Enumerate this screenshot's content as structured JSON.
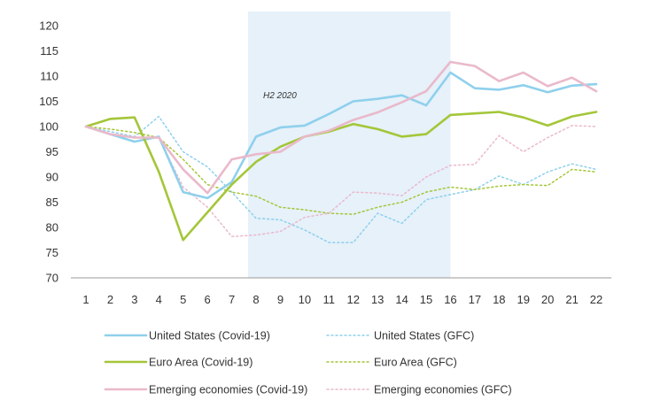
{
  "chart_data": {
    "type": "line",
    "title": "",
    "xlabel": "",
    "ylabel": "",
    "x": [
      1,
      2,
      3,
      4,
      5,
      6,
      7,
      8,
      9,
      10,
      11,
      12,
      13,
      14,
      15,
      16,
      17,
      18,
      19,
      20,
      21,
      22
    ],
    "ylim": [
      70,
      120
    ],
    "yticks": [
      70,
      75,
      80,
      85,
      90,
      95,
      100,
      105,
      110,
      115,
      120
    ],
    "grid": false,
    "legend_position": "bottom",
    "shaded_region": {
      "x_start": 8,
      "x_end": 16,
      "label": "H2 2020",
      "color": "#e6f1fa"
    },
    "series": [
      {
        "name": "United States (Covid-19)",
        "color": "#8fd0ec",
        "style": "solid",
        "values": [
          100,
          98.5,
          97,
          98,
          87,
          85.8,
          89,
          98,
          99.8,
          100.2,
          102.5,
          105,
          105.5,
          106.2,
          104.2,
          110.7,
          107.6,
          107.3,
          108.2,
          106.8,
          108.1,
          108.4
        ]
      },
      {
        "name": "United States (GFC)",
        "color": "#8fd0ec",
        "style": "dotted",
        "values": [
          100,
          99,
          98,
          102,
          95,
          92,
          87,
          81.8,
          81.5,
          79.5,
          77,
          77,
          82.8,
          80.8,
          85.5,
          86.5,
          87.5,
          90.2,
          88.5,
          91,
          92.6,
          91.5
        ]
      },
      {
        "name": "Euro Area (Covid-19)",
        "color": "#a4c639",
        "style": "solid",
        "values": [
          100,
          101.5,
          101.8,
          91,
          77.5,
          83,
          88.5,
          93,
          96,
          98,
          99,
          100.5,
          99.5,
          98,
          98.5,
          102.3,
          102.6,
          102.9,
          101.8,
          100.2,
          102,
          102.9
        ]
      },
      {
        "name": "Euro Area (GFC)",
        "color": "#a4c639",
        "style": "dotted",
        "values": [
          100,
          99.5,
          98.8,
          97.8,
          93.5,
          88.5,
          87,
          86.2,
          84,
          83.5,
          82.8,
          82.6,
          84,
          85,
          87,
          88,
          87.5,
          88.2,
          88.5,
          88.3,
          91.5,
          91
        ]
      },
      {
        "name": "Emerging economies (Covid-19)",
        "color": "#eab9cb",
        "style": "solid",
        "values": [
          100,
          98.5,
          97.8,
          97.8,
          91.5,
          86.8,
          93.5,
          94.5,
          95,
          98,
          99.2,
          101.3,
          102.8,
          104.8,
          107,
          112.8,
          112,
          109,
          110.7,
          108,
          109.7,
          107
        ]
      },
      {
        "name": "Emerging economies (GFC)",
        "color": "#eab9cb",
        "style": "dotted",
        "values": [
          100,
          98.5,
          97.8,
          97.8,
          88,
          84,
          78.2,
          78.5,
          79.2,
          82,
          82.8,
          87,
          86.8,
          86.3,
          90,
          92.3,
          92.5,
          98.2,
          95,
          97.8,
          100.2,
          100
        ]
      }
    ]
  }
}
